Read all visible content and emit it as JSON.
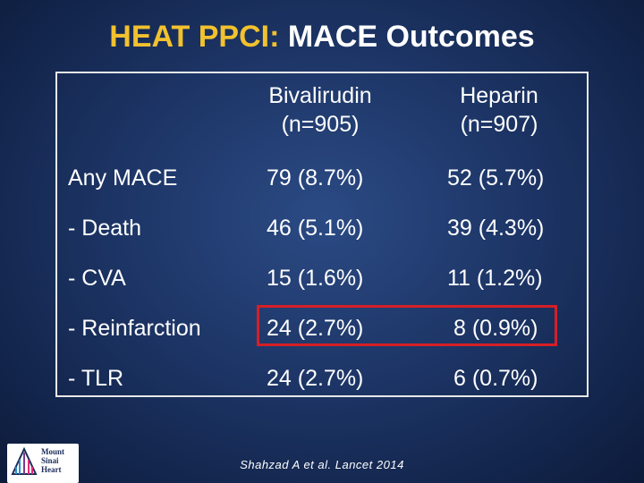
{
  "title": {
    "prefix": "HEAT PPCI:",
    "main": " MACE Outcomes"
  },
  "table": {
    "columns": [
      {
        "line1": "Bivalirudin",
        "line2": "(n=905)"
      },
      {
        "line1": "Heparin",
        "line2": "(n=907)"
      }
    ],
    "rows": [
      {
        "label": "Any MACE",
        "bivalirudin": "79 (8.7%)",
        "heparin": "52 (5.7%)"
      },
      {
        "label": "- Death",
        "bivalirudin": "46 (5.1%)",
        "heparin": "39 (4.3%)"
      },
      {
        "label": "- CVA",
        "bivalirudin": "15 (1.6%)",
        "heparin": "11 (1.2%)"
      },
      {
        "label": "- Reinfarction",
        "bivalirudin": "24 (2.7%)",
        "heparin": "8 (0.9%)"
      },
      {
        "label": "- TLR",
        "bivalirudin": "24 (2.7%)",
        "heparin": "6 (0.7%)"
      }
    ]
  },
  "citation": "Shahzad A et al. Lancet 2014",
  "logo": {
    "text": "Mount\nSinai\nHeart"
  },
  "colors": {
    "title_accent": "#f2c12e",
    "highlight_border": "#d61f26",
    "background": "#1d3566"
  }
}
